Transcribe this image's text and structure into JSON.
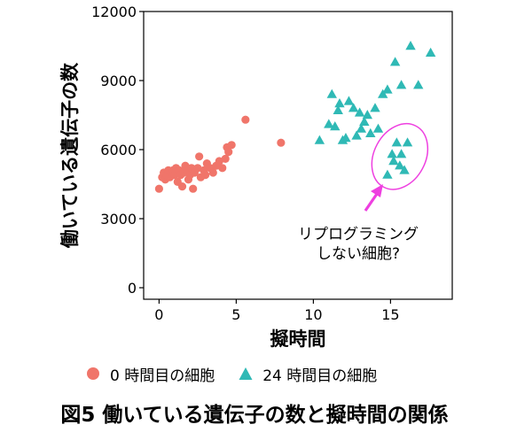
{
  "chart_data": {
    "type": "scatter",
    "title": "",
    "xlabel": "擬時間",
    "ylabel": "働いている遺伝子の数",
    "xlim": [
      -1,
      19
    ],
    "ylim": [
      -500,
      12000
    ],
    "xticks": [
      "0",
      "5",
      "10",
      "15"
    ],
    "yticks": [
      "0",
      "3000",
      "6000",
      "9000",
      "12000"
    ],
    "grid": false,
    "legend_position": "bottom",
    "series": [
      {
        "name": "0 時間目の細胞",
        "marker": "circle",
        "color": "#f0756a",
        "points": [
          [
            0,
            4300
          ],
          [
            0.2,
            4800
          ],
          [
            0.3,
            5000
          ],
          [
            0.4,
            4700
          ],
          [
            0.5,
            4900
          ],
          [
            0.6,
            5100
          ],
          [
            0.7,
            4800
          ],
          [
            0.8,
            5000
          ],
          [
            0.9,
            5100
          ],
          [
            1.0,
            4900
          ],
          [
            1.1,
            5200
          ],
          [
            1.2,
            4600
          ],
          [
            1.3,
            5100
          ],
          [
            1.4,
            4900
          ],
          [
            1.5,
            4400
          ],
          [
            1.6,
            5000
          ],
          [
            1.7,
            5300
          ],
          [
            1.8,
            5100
          ],
          [
            1.9,
            4700
          ],
          [
            2.0,
            4900
          ],
          [
            2.1,
            5200
          ],
          [
            2.2,
            4300
          ],
          [
            2.3,
            5000
          ],
          [
            2.5,
            5200
          ],
          [
            2.6,
            5700
          ],
          [
            2.7,
            4800
          ],
          [
            2.9,
            5100
          ],
          [
            3.0,
            4900
          ],
          [
            3.1,
            5400
          ],
          [
            3.3,
            5200
          ],
          [
            3.5,
            5000
          ],
          [
            3.7,
            5300
          ],
          [
            3.9,
            5500
          ],
          [
            4.1,
            5200
          ],
          [
            4.3,
            5600
          ],
          [
            4.4,
            6100
          ],
          [
            4.5,
            5900
          ],
          [
            4.7,
            6200
          ],
          [
            5.6,
            7300
          ],
          [
            7.9,
            6300
          ]
        ]
      },
      {
        "name": "24 時間目の細胞",
        "marker": "triangle",
        "color": "#2fb9b5",
        "points": [
          [
            10.4,
            6400
          ],
          [
            11.0,
            7100
          ],
          [
            11.2,
            8400
          ],
          [
            11.4,
            7000
          ],
          [
            11.6,
            7700
          ],
          [
            11.7,
            8000
          ],
          [
            11.9,
            6400
          ],
          [
            12.1,
            6500
          ],
          [
            12.3,
            8100
          ],
          [
            12.6,
            7800
          ],
          [
            12.8,
            6600
          ],
          [
            13.0,
            7600
          ],
          [
            13.1,
            6900
          ],
          [
            13.3,
            7200
          ],
          [
            13.5,
            7500
          ],
          [
            13.7,
            6700
          ],
          [
            14.0,
            7800
          ],
          [
            14.2,
            6900
          ],
          [
            14.5,
            8400
          ],
          [
            14.8,
            8600
          ],
          [
            15.3,
            9800
          ],
          [
            15.7,
            8800
          ],
          [
            16.3,
            10500
          ],
          [
            16.8,
            8800
          ],
          [
            17.6,
            10200
          ],
          [
            14.8,
            4900
          ],
          [
            15.1,
            5800
          ],
          [
            15.2,
            5500
          ],
          [
            15.4,
            6300
          ],
          [
            15.6,
            5300
          ],
          [
            15.7,
            5800
          ],
          [
            15.9,
            5100
          ],
          [
            16.1,
            6300
          ]
        ]
      }
    ],
    "annotations": [
      {
        "text": "リプログラミング",
        "target": [
          15.6,
          5700
        ]
      },
      {
        "text": "しない細胞?",
        "target": [
          15.6,
          5700
        ]
      }
    ]
  },
  "caption": "図5 働いている遺伝子の数と擬時間の関係",
  "colors": {
    "annotation": "#ee3fe0",
    "axis": "#000000"
  }
}
